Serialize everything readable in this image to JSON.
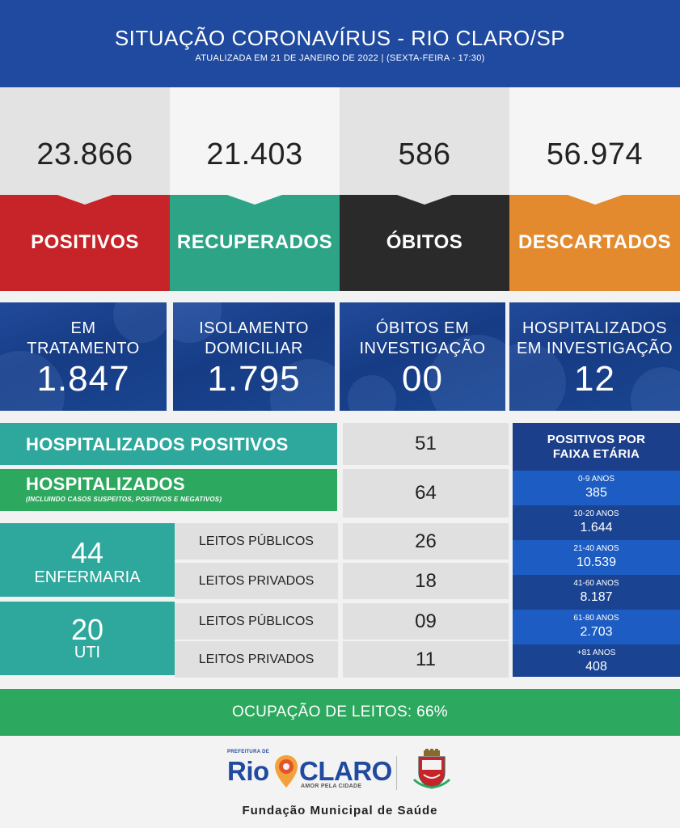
{
  "header": {
    "title": "SITUAÇÃO CORONAVÍRUS - RIO CLARO/SP",
    "subtitle": "ATUALIZADA EM 21 DE JANEIRO DE 2022 | (SEXTA-FEIRA - 17:30)"
  },
  "colors": {
    "header_blue": "#1f4aa0",
    "positivos": "#c62428",
    "recuperados": "#2ea486",
    "obitos": "#2a2a2a",
    "descartados": "#e38a2e",
    "teal": "#2ea89c",
    "green": "#2da85f"
  },
  "stats": [
    {
      "value": "23.866",
      "label": "POSITIVOS"
    },
    {
      "value": "21.403",
      "label": "RECUPERADOS"
    },
    {
      "value": "586",
      "label": "ÓBITOS"
    },
    {
      "value": "56.974",
      "label": "DESCARTADOS"
    }
  ],
  "info": [
    {
      "line1": "EM",
      "line2": "TRATAMENTO",
      "value": "1.847"
    },
    {
      "line1": "ISOLAMENTO",
      "line2": "DOMICILIAR",
      "value": "1.795"
    },
    {
      "line1": "ÓBITOS EM",
      "line2": "INVESTIGAÇÃO",
      "value": "00"
    },
    {
      "line1": "HOSPITALIZADOS",
      "line2": "EM INVESTIGAÇÃO",
      "value": "12"
    }
  ],
  "hospital": {
    "positivos_label": "HOSPITALIZADOS POSITIVOS",
    "positivos_value": "51",
    "total_label": "HOSPITALIZADOS",
    "total_sub": "(INCLUINDO CASOS SUSPEITOS, POSITIVOS E NEGATIVOS)",
    "total_value": "64",
    "enfermaria": {
      "value": "44",
      "label": "ENFERMARIA",
      "publicos_label": "LEITOS PÚBLICOS",
      "publicos_value": "26",
      "privados_label": "LEITOS PRIVADOS",
      "privados_value": "18"
    },
    "uti": {
      "value": "20",
      "label": "UTI",
      "publicos_label": "LEITOS PÚBLICOS",
      "publicos_value": "09",
      "privados_label": "LEITOS PRIVADOS",
      "privados_value": "11"
    }
  },
  "age": {
    "title1": "POSITIVOS POR",
    "title2": "FAIXA ETÁRIA",
    "rows": [
      {
        "range": "0-9 ANOS",
        "value": "385"
      },
      {
        "range": "10-20 ANOS",
        "value": "1.644"
      },
      {
        "range": "21-40 ANOS",
        "value": "10.539"
      },
      {
        "range": "41-60 ANOS",
        "value": "8.187"
      },
      {
        "range": "61-80 ANOS",
        "value": "2.703"
      },
      {
        "range": "+81 ANOS",
        "value": "408"
      }
    ]
  },
  "occupancy": "OCUPAÇÃO DE LEITOS: 66%",
  "footer": {
    "prefeitura": "PREFEITURA DE",
    "logo_rio": "Rio",
    "logo_claro": "CLARO",
    "tagline": "AMOR PELA CIDADE",
    "fundacao": "Fundação Municipal de Saúde"
  }
}
